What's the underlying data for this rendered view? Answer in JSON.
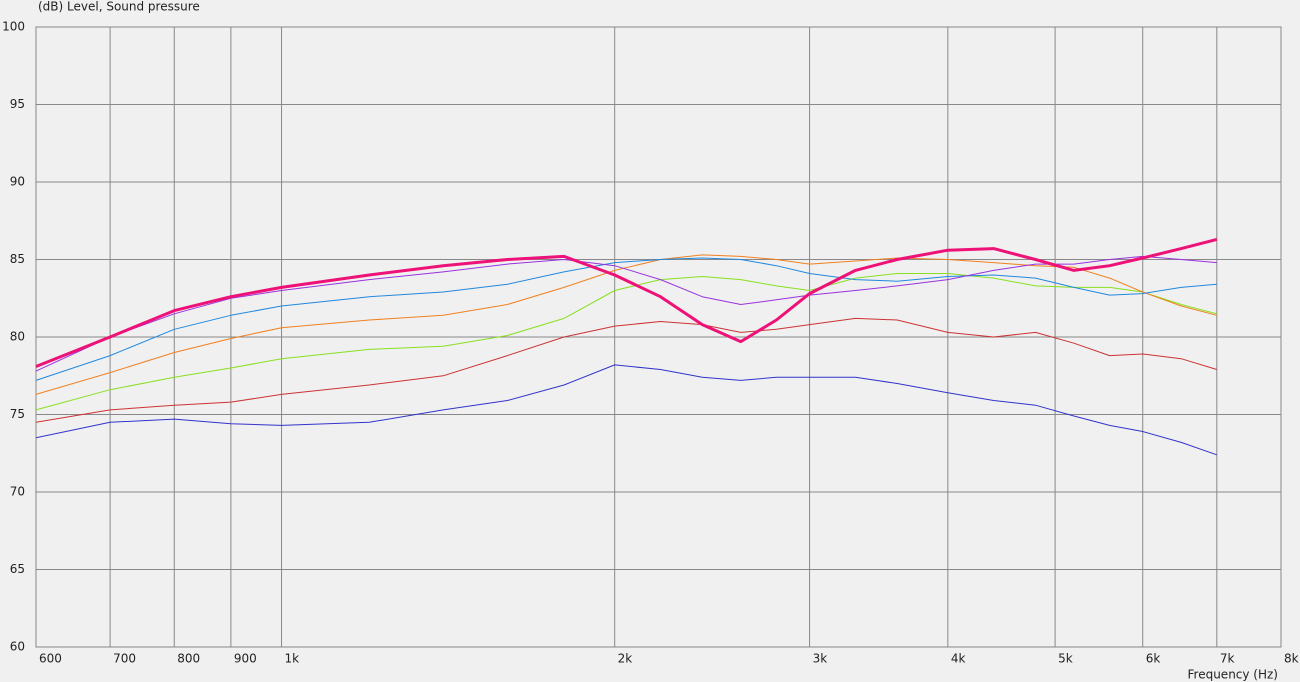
{
  "chart_data": {
    "type": "line",
    "y_axis_label": "(dB)  Level, Sound pressure",
    "x_axis_label": "Frequency  (Hz)",
    "log_x": true,
    "grid": true,
    "xlim": [
      600,
      8000
    ],
    "ylim": [
      60,
      100
    ],
    "xticks": [
      600,
      700,
      800,
      900,
      {
        "value": 1000,
        "label": "1k"
      },
      {
        "value": 2000,
        "label": "2k"
      },
      {
        "value": 3000,
        "label": "3k"
      },
      {
        "value": 4000,
        "label": "4k"
      },
      {
        "value": 5000,
        "label": "5k"
      },
      {
        "value": 6000,
        "label": "6k"
      },
      {
        "value": 7000,
        "label": "7k"
      },
      {
        "value": 8000,
        "label": "8k"
      }
    ],
    "yticks": [
      60,
      65,
      70,
      75,
      80,
      85,
      90,
      95,
      100
    ],
    "x": [
      600,
      700,
      800,
      900,
      1000,
      1200,
      1400,
      1600,
      1800,
      2000,
      2200,
      2400,
      2600,
      2800,
      3000,
      3300,
      3600,
      4000,
      4400,
      4800,
      5200,
      5600,
      6000,
      6500,
      7000
    ],
    "series": [
      {
        "color": "#3333cc",
        "width": 1,
        "values": [
          73.5,
          74.5,
          74.7,
          74.4,
          74.3,
          74.5,
          75.3,
          75.9,
          76.9,
          78.2,
          77.9,
          77.4,
          77.2,
          77.4,
          77.4,
          77.4,
          77.0,
          76.4,
          75.9,
          75.6,
          74.9,
          74.3,
          73.9,
          73.2,
          72.4
        ]
      },
      {
        "color": "#cc3333",
        "width": 1,
        "values": [
          74.5,
          75.3,
          75.6,
          75.8,
          76.3,
          76.9,
          77.5,
          78.8,
          80.0,
          80.7,
          81.0,
          80.8,
          80.3,
          80.5,
          80.8,
          81.2,
          81.1,
          80.3,
          80.0,
          80.3,
          79.6,
          78.8,
          78.9,
          78.6,
          77.9
        ]
      },
      {
        "color": "#88e020",
        "width": 1,
        "values": [
          75.3,
          76.6,
          77.4,
          78.0,
          78.6,
          79.2,
          79.4,
          80.1,
          81.2,
          83.0,
          83.7,
          83.9,
          83.7,
          83.3,
          83.0,
          83.8,
          84.1,
          84.1,
          83.8,
          83.3,
          83.2,
          83.2,
          82.9,
          82.1,
          81.5
        ]
      },
      {
        "color": "#f08020",
        "width": 1,
        "values": [
          76.3,
          77.7,
          79.0,
          79.9,
          80.6,
          81.1,
          81.4,
          82.1,
          83.2,
          84.3,
          85.0,
          85.3,
          85.2,
          85.0,
          84.7,
          84.9,
          85.1,
          85.0,
          84.8,
          84.6,
          84.5,
          83.8,
          82.9,
          82.0,
          81.4
        ]
      },
      {
        "color": "#2288dd",
        "width": 1,
        "values": [
          77.2,
          78.8,
          80.5,
          81.4,
          82.0,
          82.6,
          82.9,
          83.4,
          84.2,
          84.8,
          85.0,
          85.1,
          85.0,
          84.6,
          84.1,
          83.7,
          83.6,
          83.9,
          84.0,
          83.8,
          83.2,
          82.7,
          82.8,
          83.2,
          83.4
        ]
      },
      {
        "color": "#9933dd",
        "width": 1,
        "values": [
          77.8,
          80.0,
          81.5,
          82.5,
          83.0,
          83.7,
          84.2,
          84.7,
          85.0,
          84.6,
          83.7,
          82.6,
          82.1,
          82.4,
          82.7,
          83.0,
          83.3,
          83.7,
          84.3,
          84.7,
          84.7,
          85.0,
          85.2,
          85.0,
          84.8
        ]
      },
      {
        "color": "#ee1177",
        "width": 3,
        "values": [
          78.1,
          80.0,
          81.7,
          82.6,
          83.2,
          84.0,
          84.6,
          85.0,
          85.2,
          84.0,
          82.6,
          80.8,
          79.7,
          81.1,
          82.8,
          84.3,
          85.0,
          85.6,
          85.7,
          85.0,
          84.3,
          84.6,
          85.1,
          85.7,
          86.3
        ]
      }
    ]
  }
}
